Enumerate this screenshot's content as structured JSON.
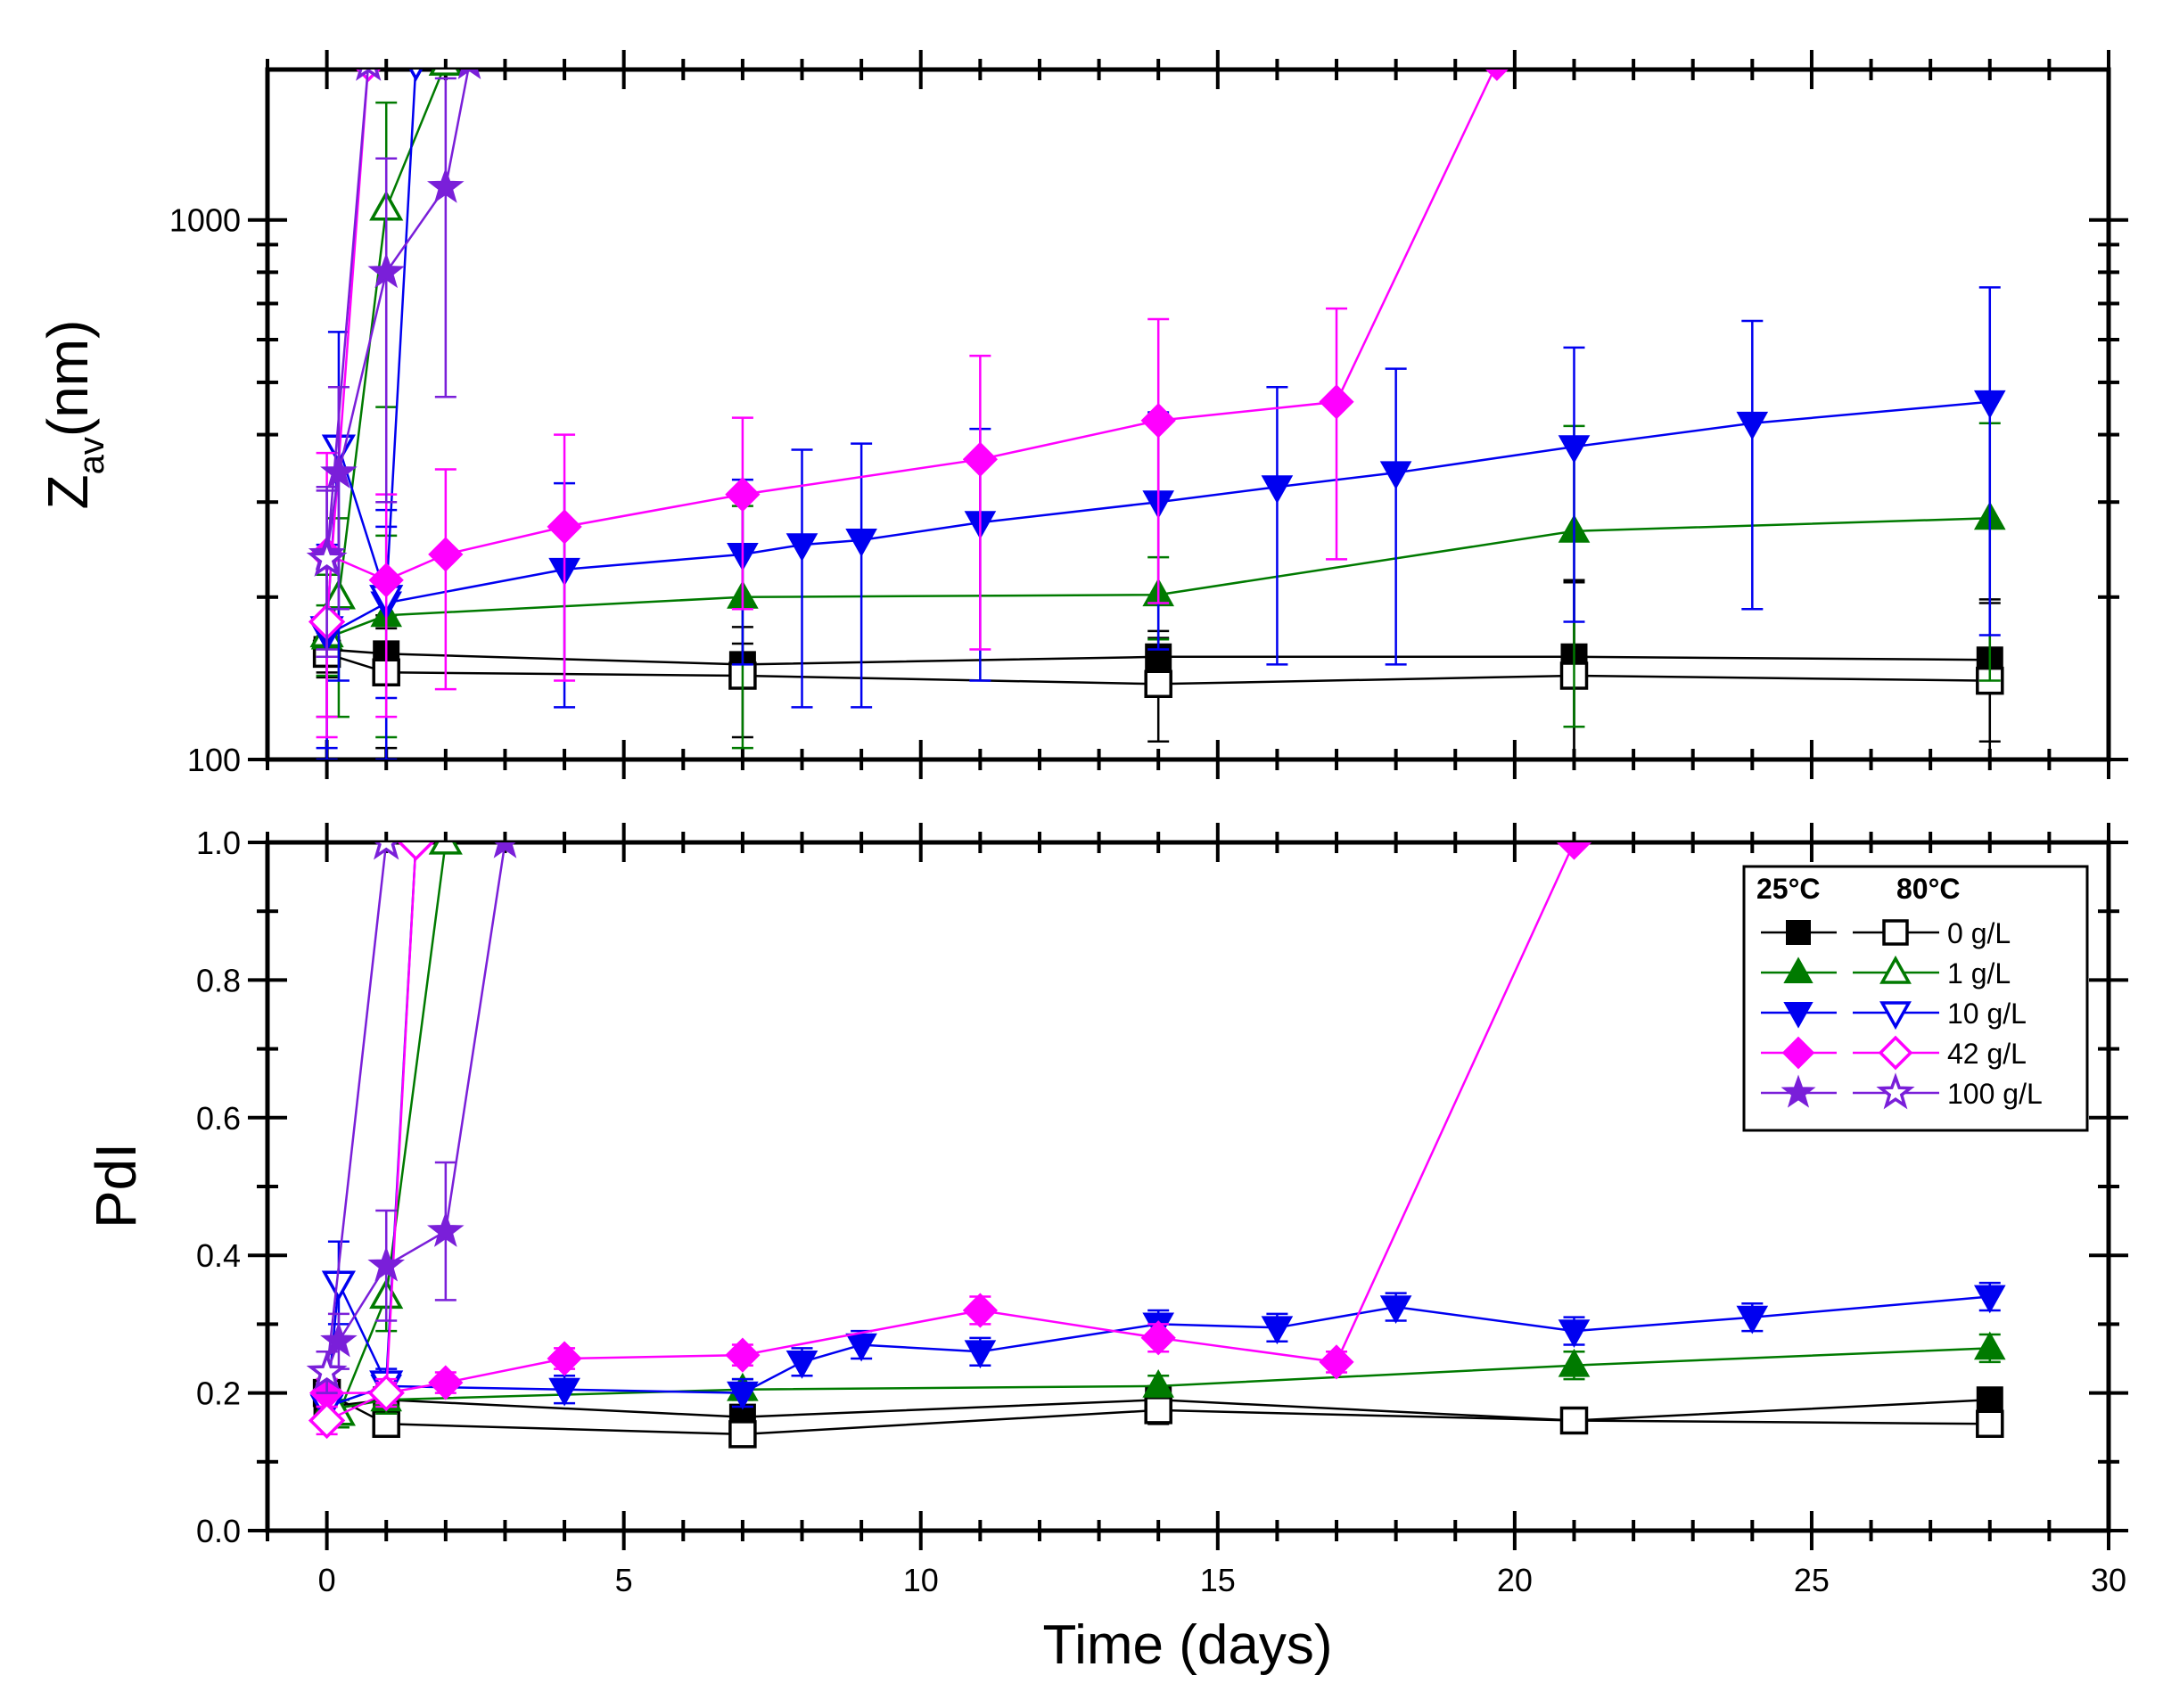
{
  "chart_data": {
    "type": "scatter",
    "x_axis": {
      "label": "Time (days)",
      "range": [
        -1,
        30
      ],
      "ticks": [
        0,
        5,
        10,
        15,
        20,
        25,
        30
      ],
      "tick_labels": [
        "0",
        "5",
        "10",
        "15",
        "20",
        "25",
        "30"
      ]
    },
    "legend": {
      "placement": "top-right (bottom panel)",
      "headers": [
        "25°C",
        "80°C"
      ],
      "entries": [
        "0 g/L",
        "1 g/L",
        "10 g/L",
        "42 g/L",
        "100 g/L"
      ]
    },
    "series_styles": [
      {
        "label": "0 g/L",
        "color": "#000000",
        "marker": "square"
      },
      {
        "label": "1 g/L",
        "color": "#007A00",
        "marker": "triangle-up"
      },
      {
        "label": "10 g/L",
        "color": "#0000F0",
        "marker": "triangle-down"
      },
      {
        "label": "42 g/L",
        "color": "#FF00FF",
        "marker": "diamond"
      },
      {
        "label": "100 g/L",
        "color": "#7A1FD9",
        "marker": "star"
      }
    ],
    "panels": [
      {
        "name": "top",
        "y_label_main": "Z",
        "y_label_sub": "av",
        "y_label_rest": "(nm)",
        "y_scale": "log",
        "y_range": [
          100,
          1900
        ],
        "y_ticks": [
          100,
          1000
        ],
        "y_tick_labels": [
          "100",
          "1000"
        ],
        "series": [
          {
            "name": "0 g/L",
            "temperature": "25°C",
            "points": [
              [
                0,
                160,
                15
              ],
              [
                1,
                157,
                18
              ],
              [
                7,
                150,
                14
              ],
              [
                14,
                155,
                18
              ],
              [
                21,
                155,
                60
              ],
              [
                28,
                153,
                45
              ]
            ]
          },
          {
            "name": "0 g/L",
            "temperature": "80°C",
            "points": [
              [
                0,
                157,
                15
              ],
              [
                1,
                145,
                40
              ],
              [
                7,
                143,
                33
              ],
              [
                14,
                138,
                30
              ],
              [
                21,
                143,
                70
              ],
              [
                28,
                140,
                55
              ]
            ]
          },
          {
            "name": "1 g/L",
            "temperature": "25°C",
            "points": [
              [
                0,
                168,
                25
              ],
              [
                1,
                185,
                75
              ],
              [
                7,
                200,
                95
              ],
              [
                14,
                202,
                35
              ],
              [
                21,
                265,
                150
              ],
              [
                28,
                280,
                140
              ]
            ]
          },
          {
            "name": "1 g/L",
            "temperature": "80°C",
            "points": [
              [
                0,
                170,
                50
              ],
              [
                0.2,
                200,
                80
              ],
              [
                1,
                1050,
                600
              ],
              [
                2,
                1950,
                0
              ]
            ]
          },
          {
            "name": "10 g/L",
            "temperature": "25°C",
            "points": [
              [
                0,
                170,
                65
              ],
              [
                1,
                195,
                95
              ],
              [
                4,
                225,
                100
              ],
              [
                7,
                240,
                90
              ],
              [
                8,
                250,
                125
              ],
              [
                9,
                255,
                130
              ],
              [
                11,
                275,
                135
              ],
              [
                14,
                300,
                140
              ],
              [
                16,
                320,
                170
              ],
              [
                18,
                340,
                190
              ],
              [
                21,
                380,
                200
              ],
              [
                24,
                420,
                230
              ],
              [
                28,
                460,
                290
              ]
            ]
          },
          {
            "name": "10 g/L",
            "temperature": "80°C",
            "points": [
              [
                0,
                175,
                75
              ],
              [
                0.2,
                380,
                240
              ],
              [
                1,
                200,
                70
              ],
              [
                1.5,
                1950,
                0
              ]
            ]
          },
          {
            "name": "42 g/L",
            "temperature": "25°C",
            "points": [
              [
                0,
                240,
                130
              ],
              [
                1,
                215,
                95
              ],
              [
                2,
                240,
                105
              ],
              [
                4,
                270,
                130
              ],
              [
                7,
                310,
                120
              ],
              [
                11,
                360,
                200
              ],
              [
                14,
                425,
                230
              ],
              [
                17,
                460,
                225
              ],
              [
                19.7,
                1950,
                0
              ]
            ]
          },
          {
            "name": "42 g/L",
            "temperature": "80°C",
            "points": [
              [
                0,
                180,
                60
              ],
              [
                0.7,
                1950,
                0
              ]
            ]
          },
          {
            "name": "100 g/L",
            "temperature": "25°C",
            "points": [
              [
                0,
                240,
                80
              ],
              [
                0.2,
                340,
                150
              ],
              [
                1,
                800,
                500
              ],
              [
                2,
                1150,
                680
              ],
              [
                2.4,
                1950,
                0
              ]
            ]
          },
          {
            "name": "100 g/L",
            "temperature": "80°C",
            "points": [
              [
                0,
                235,
                80
              ],
              [
                0.7,
                1950,
                0
              ]
            ]
          }
        ]
      },
      {
        "name": "bottom",
        "y_label_main": "PdI",
        "y_scale": "linear",
        "y_range": [
          0,
          1
        ],
        "y_ticks": [
          0,
          0.2,
          0.4,
          0.6,
          0.8,
          1.0
        ],
        "y_tick_labels": [
          "0.0",
          "0.2",
          "0.4",
          "0.6",
          "0.8",
          "1.0"
        ],
        "series": [
          {
            "name": "0 g/L",
            "temperature": "25°C",
            "points": [
              [
                0,
                0.18,
                0.02
              ],
              [
                1,
                0.19,
                0.02
              ],
              [
                7,
                0.165,
                0.015
              ],
              [
                14,
                0.19,
                0.02
              ],
              [
                21,
                0.16,
                0.01
              ],
              [
                28,
                0.19,
                0.015
              ]
            ]
          },
          {
            "name": "0 g/L",
            "temperature": "80°C",
            "points": [
              [
                0,
                0.2,
                0.02
              ],
              [
                1,
                0.155,
                0.01
              ],
              [
                7,
                0.14,
                0.01
              ],
              [
                14,
                0.175,
                0.02
              ],
              [
                21,
                0.16,
                0.01
              ],
              [
                28,
                0.155,
                0.01
              ]
            ]
          },
          {
            "name": "1 g/L",
            "temperature": "25°C",
            "points": [
              [
                0,
                0.175,
                0.02
              ],
              [
                1,
                0.19,
                0.02
              ],
              [
                7,
                0.205,
                0.015
              ],
              [
                14,
                0.21,
                0.015
              ],
              [
                21,
                0.24,
                0.02
              ],
              [
                28,
                0.265,
                0.02
              ]
            ]
          },
          {
            "name": "1 g/L",
            "temperature": "80°C",
            "points": [
              [
                0,
                0.175,
                0.02
              ],
              [
                0.2,
                0.17,
                0.02
              ],
              [
                1,
                0.34,
                0.05
              ],
              [
                2,
                1.0,
                0
              ]
            ]
          },
          {
            "name": "10 g/L",
            "temperature": "25°C",
            "points": [
              [
                0,
                0.18,
                0.02
              ],
              [
                1,
                0.21,
                0.02
              ],
              [
                4,
                0.205,
                0.02
              ],
              [
                7,
                0.2,
                0.02
              ],
              [
                8,
                0.245,
                0.02
              ],
              [
                9,
                0.27,
                0.02
              ],
              [
                11,
                0.26,
                0.02
              ],
              [
                14,
                0.3,
                0.02
              ],
              [
                16,
                0.295,
                0.02
              ],
              [
                18,
                0.325,
                0.02
              ],
              [
                21,
                0.29,
                0.02
              ],
              [
                24,
                0.31,
                0.02
              ],
              [
                28,
                0.34,
                0.02
              ]
            ]
          },
          {
            "name": "10 g/L",
            "temperature": "80°C",
            "points": [
              [
                0,
                0.18,
                0.02
              ],
              [
                0.2,
                0.36,
                0.06
              ],
              [
                1,
                0.215,
                0.02
              ],
              [
                1.5,
                1.0,
                0
              ]
            ]
          },
          {
            "name": "42 g/L",
            "temperature": "25°C",
            "points": [
              [
                0,
                0.2,
                0.02
              ],
              [
                1,
                0.2,
                0.015
              ],
              [
                2,
                0.215,
                0.015
              ],
              [
                4,
                0.25,
                0.015
              ],
              [
                7,
                0.255,
                0.015
              ],
              [
                11,
                0.32,
                0.02
              ],
              [
                14,
                0.28,
                0.02
              ],
              [
                17,
                0.245,
                0.015
              ],
              [
                21,
                1.0,
                0
              ]
            ]
          },
          {
            "name": "42 g/L",
            "temperature": "80°C",
            "points": [
              [
                0,
                0.16,
                0.02
              ],
              [
                1,
                0.2,
                0.02
              ],
              [
                1.5,
                1.0,
                0
              ]
            ]
          },
          {
            "name": "100 g/L",
            "temperature": "25°C",
            "points": [
              [
                0,
                0.23,
                0.03
              ],
              [
                0.2,
                0.275,
                0.04
              ],
              [
                1,
                0.385,
                0.08
              ],
              [
                2,
                0.435,
                0.1
              ],
              [
                3,
                1.0,
                0
              ]
            ]
          },
          {
            "name": "100 g/L",
            "temperature": "80°C",
            "points": [
              [
                0,
                0.23,
                0.03
              ],
              [
                1,
                1.0,
                0
              ]
            ]
          }
        ]
      }
    ]
  }
}
